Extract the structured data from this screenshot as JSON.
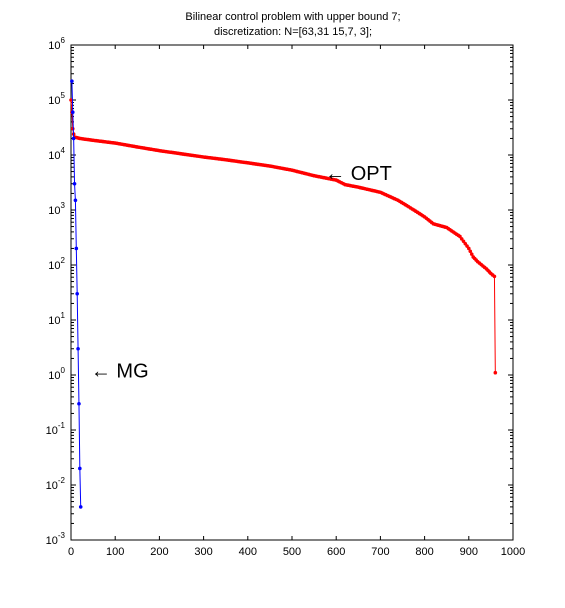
{
  "chart_data": {
    "type": "line",
    "title_lines": [
      "Bilinear control problem with upper bound 7;",
      "discretization: N=[63,31 15,7, 3];"
    ],
    "xlabel": "",
    "ylabel": "",
    "x_scale": "linear",
    "y_scale": "log",
    "xlim": [
      0,
      1000
    ],
    "ylim": [
      0.001,
      1000000
    ],
    "grid": false,
    "x_ticks": [
      0,
      100,
      200,
      300,
      400,
      500,
      600,
      700,
      800,
      900,
      1000
    ],
    "y_ticks": [
      {
        "value": 0.001,
        "base": "10",
        "exp": "-3"
      },
      {
        "value": 0.01,
        "base": "10",
        "exp": "-2"
      },
      {
        "value": 0.1,
        "base": "10",
        "exp": "-1"
      },
      {
        "value": 1,
        "base": "10",
        "exp": "0"
      },
      {
        "value": 10,
        "base": "10",
        "exp": "1"
      },
      {
        "value": 100,
        "base": "10",
        "exp": "2"
      },
      {
        "value": 1000,
        "base": "10",
        "exp": "3"
      },
      {
        "value": 10000,
        "base": "10",
        "exp": "4"
      },
      {
        "value": 100000,
        "base": "10",
        "exp": "5"
      },
      {
        "value": 1000000,
        "base": "10",
        "exp": "6"
      }
    ],
    "series": [
      {
        "color": "#ff0000",
        "marker": "dot",
        "points": [
          [
            0,
            100000
          ],
          [
            2,
            60000
          ],
          [
            4,
            30000
          ],
          [
            6,
            24000
          ],
          [
            10,
            21000
          ],
          [
            20,
            20000
          ],
          [
            50,
            18500
          ],
          [
            100,
            16500
          ],
          [
            150,
            14000
          ],
          [
            200,
            12000
          ],
          [
            250,
            10500
          ],
          [
            300,
            9200
          ],
          [
            350,
            8200
          ],
          [
            400,
            7200
          ],
          [
            450,
            6300
          ],
          [
            500,
            5300
          ],
          [
            550,
            4200
          ],
          [
            600,
            3500
          ],
          [
            620,
            2900
          ],
          [
            650,
            2600
          ],
          [
            700,
            2100
          ],
          [
            740,
            1500
          ],
          [
            760,
            1200
          ],
          [
            780,
            950
          ],
          [
            800,
            750
          ],
          [
            820,
            560
          ],
          [
            850,
            480
          ],
          [
            880,
            330
          ],
          [
            900,
            200
          ],
          [
            910,
            140
          ],
          [
            920,
            115
          ],
          [
            940,
            85
          ],
          [
            950,
            70
          ],
          [
            958,
            62
          ],
          [
            960,
            1.1
          ]
        ]
      },
      {
        "color": "#0000ff",
        "marker": "dot",
        "points": [
          [
            2,
            220000
          ],
          [
            4,
            60000
          ],
          [
            6,
            20000
          ],
          [
            8,
            3000
          ],
          [
            10,
            1500
          ],
          [
            12,
            200
          ],
          [
            14,
            30
          ],
          [
            16,
            3
          ],
          [
            18,
            0.3
          ],
          [
            20,
            0.02
          ],
          [
            22,
            0.004
          ]
        ]
      }
    ],
    "annotations": [
      {
        "text": "← OPT",
        "x": 575,
        "y": 4700
      },
      {
        "text": "← MG",
        "x": 45,
        "y": 1.2
      }
    ]
  }
}
